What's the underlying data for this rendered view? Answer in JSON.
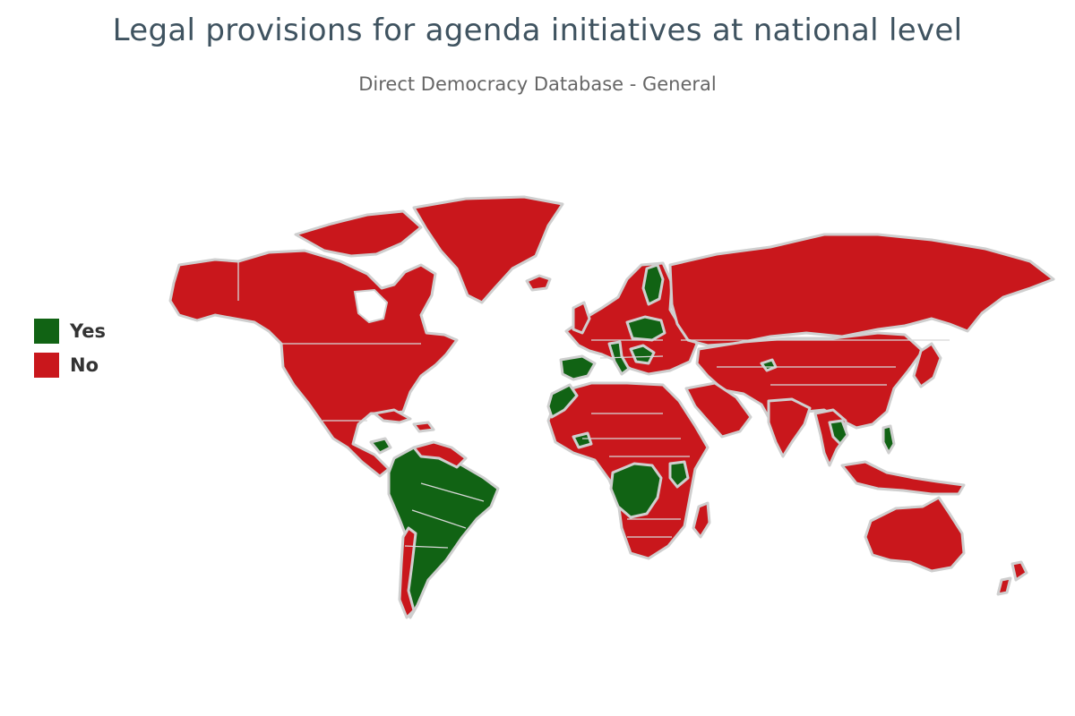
{
  "title": "Legal provisions for agenda initiatives at national level",
  "subtitle": "Direct Democracy Database - General",
  "legend": {
    "items": [
      {
        "label": "Yes",
        "color": "#116314"
      },
      {
        "label": "No",
        "color": "#c9171c"
      }
    ]
  },
  "map": {
    "background": "#ffffff",
    "border_color": "#d0d0d0",
    "yes_color": "#116314",
    "no_color": "#c9171c"
  }
}
